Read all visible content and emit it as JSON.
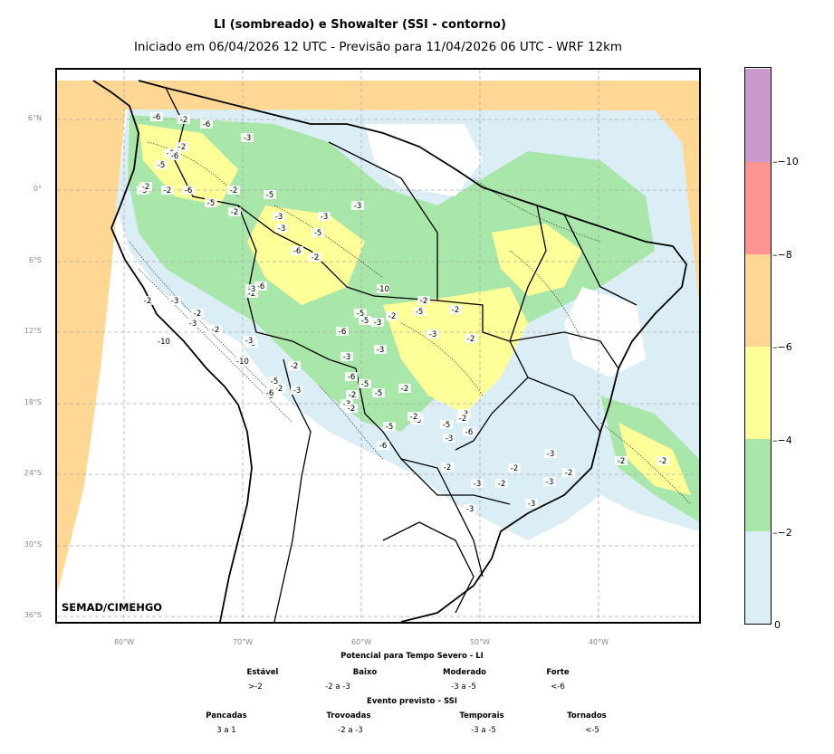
{
  "title": "LI (sombreado) e Showalter (SSI - contorno)",
  "subtitle": "Iniciado em 06/04/2026 12 UTC - Previsão para 11/04/2026 06 UTC - WRF 12km",
  "credit": "SEMAD/CIMEHGO",
  "lat_labels": [
    "6°N",
    "0°",
    "6°S",
    "12°S",
    "18°S",
    "24°S",
    "30°S",
    "36°S"
  ],
  "lon_labels": [
    "80°W",
    "70°W",
    "60°W",
    "50°W",
    "40°W"
  ],
  "colorbar": {
    "colors": [
      "#dceef5",
      "#a9e6a9",
      "#ffff99",
      "#fed795",
      "#fe9393",
      "#cc99cc"
    ],
    "ticks": [
      "0",
      "−2",
      "−4",
      "−6",
      "−8",
      "−10"
    ]
  },
  "contour_labels": [
    "-6",
    "-2",
    "-6",
    "-6",
    "-3",
    "-2",
    "-5",
    "-6",
    "-3",
    "-2",
    "-6",
    "-2",
    "-5",
    "-2",
    "-3",
    "-3",
    "-2",
    "-5",
    "-3",
    "-6",
    "-5",
    "-2",
    "-3",
    "-6",
    "-2",
    "-3",
    "-5",
    "-6",
    "-3",
    "-2",
    "-2",
    "-3",
    "-5",
    "-10",
    "-2",
    "-3",
    "-2",
    "-3",
    "-10",
    "-2",
    "-6",
    "-3",
    "-10",
    "-5",
    "-2",
    "-5",
    "-6",
    "-3",
    "-2",
    "-3",
    "-5",
    "-5",
    "-6",
    "-5",
    "-2",
    "-3",
    "-6",
    "-5",
    "-2",
    "-5",
    "-3",
    "-2",
    "-6",
    "-3",
    "-6",
    "-5",
    "-2",
    "-3",
    "-2",
    "-2",
    "-2",
    "-3",
    "-3",
    "-2",
    "-2",
    "-2",
    "-3",
    "-3",
    "-3",
    "-2",
    "-2",
    "-2"
  ],
  "legend": {
    "li_title": "Potencial para Tempo Severo - LI",
    "li_categories": [
      {
        "name": "Estável",
        "value": ">-2"
      },
      {
        "name": "Baixo",
        "value": "-2 a -3"
      },
      {
        "name": "Moderado",
        "value": "-3 a -5"
      },
      {
        "name": "Forte",
        "value": "<-6"
      }
    ],
    "ssi_title": "Evento previsto - SSI",
    "ssi_categories": [
      {
        "name": "Pancadas",
        "value": "3 a 1"
      },
      {
        "name": "Trovoadas",
        "value": "-2 a -3"
      },
      {
        "name": "Temporais",
        "value": "-3 a -5"
      },
      {
        "name": "Tornados",
        "value": "<-5"
      }
    ]
  }
}
